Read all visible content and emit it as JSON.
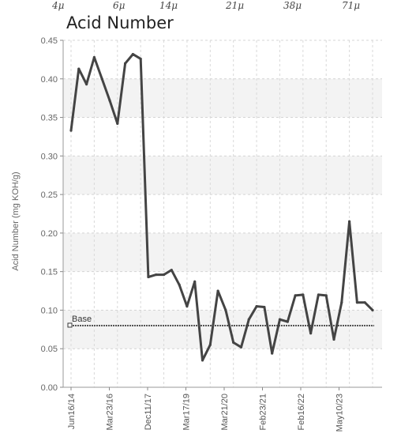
{
  "top_scale": [
    "4μ",
    "6μ",
    "14μ",
    "21μ",
    "38μ",
    "71μ"
  ],
  "chart_data": {
    "type": "line",
    "title": "Acid Number",
    "ylabel": "Acid Number (mg KOH/g)",
    "xlabel": "",
    "ylim": [
      0,
      0.45
    ],
    "yticks": [
      "0.00",
      "0.05",
      "0.10",
      "0.15",
      "0.20",
      "0.25",
      "0.30",
      "0.35",
      "0.40",
      "0.45"
    ],
    "xtick_labels": [
      "Jun16/14",
      "Mar23/16",
      "Dec11/17",
      "Mar17/19",
      "Mar21/20",
      "Feb23/21",
      "Feb16/22",
      "May10/23"
    ],
    "grid": true,
    "baseline": {
      "label": "Base",
      "value": 0.08
    },
    "color": "#444444",
    "series": [
      {
        "values": [
          0.333,
          0.413,
          0.393,
          0.428,
          0.4,
          0.372,
          0.342,
          0.42,
          0.432,
          0.426,
          0.143,
          0.146,
          0.146,
          0.152,
          0.133,
          0.105,
          0.137,
          0.035,
          0.055,
          0.125,
          0.1,
          0.058,
          0.052,
          0.088,
          0.105,
          0.104,
          0.044,
          0.088,
          0.085,
          0.119,
          0.12,
          0.07,
          0.12,
          0.119,
          0.062,
          0.11,
          0.215,
          0.11,
          0.11,
          0.1
        ]
      }
    ]
  }
}
